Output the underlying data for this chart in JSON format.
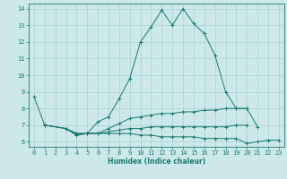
{
  "xlabel": "Humidex (Indice chaleur)",
  "xlim": [
    -0.5,
    23.5
  ],
  "ylim": [
    5.7,
    14.3
  ],
  "yticks": [
    6,
    7,
    8,
    9,
    10,
    11,
    12,
    13,
    14
  ],
  "xticks": [
    0,
    1,
    2,
    3,
    4,
    5,
    6,
    7,
    8,
    9,
    10,
    11,
    12,
    13,
    14,
    15,
    16,
    17,
    18,
    19,
    20,
    21,
    22,
    23
  ],
  "bg_color": "#cde8ea",
  "line_color": "#1a7a6e",
  "grid_color": "#b0d4d8",
  "curves": [
    {
      "x": [
        0,
        1,
        3,
        4,
        5,
        6,
        7,
        8,
        9,
        10,
        11,
        12,
        13,
        14,
        15,
        16,
        17,
        18,
        19,
        20,
        21
      ],
      "y": [
        8.7,
        7.0,
        6.8,
        6.4,
        6.5,
        7.2,
        7.5,
        8.6,
        9.8,
        12.0,
        12.9,
        13.9,
        13.0,
        14.0,
        13.1,
        12.5,
        11.2,
        9.0,
        8.0,
        8.0,
        6.9
      ]
    },
    {
      "x": [
        1,
        3,
        4,
        5,
        6,
        7,
        8,
        9,
        10,
        11,
        12,
        13,
        14,
        15,
        16,
        17,
        18,
        19,
        20
      ],
      "y": [
        7.0,
        6.8,
        6.5,
        6.5,
        6.5,
        6.6,
        6.7,
        6.8,
        6.8,
        6.9,
        6.9,
        6.9,
        6.9,
        6.9,
        6.9,
        6.9,
        6.9,
        7.0,
        7.0
      ]
    },
    {
      "x": [
        3,
        4,
        5,
        6,
        7,
        8,
        9,
        10,
        11,
        12,
        13,
        14,
        15,
        16,
        17,
        18,
        19,
        20
      ],
      "y": [
        6.8,
        6.5,
        6.5,
        6.5,
        6.8,
        7.1,
        7.4,
        7.5,
        7.6,
        7.7,
        7.7,
        7.8,
        7.8,
        7.9,
        7.9,
        8.0,
        8.0,
        8.0
      ]
    },
    {
      "x": [
        1,
        3,
        4,
        5,
        6,
        7,
        8,
        9,
        10,
        11,
        12,
        13,
        14,
        15,
        16,
        17,
        18,
        19,
        20,
        21,
        22,
        23
      ],
      "y": [
        7.0,
        6.8,
        6.4,
        6.5,
        6.5,
        6.5,
        6.5,
        6.5,
        6.4,
        6.4,
        6.3,
        6.3,
        6.3,
        6.3,
        6.2,
        6.2,
        6.2,
        6.2,
        5.9,
        6.0,
        6.1,
        6.1
      ]
    }
  ]
}
